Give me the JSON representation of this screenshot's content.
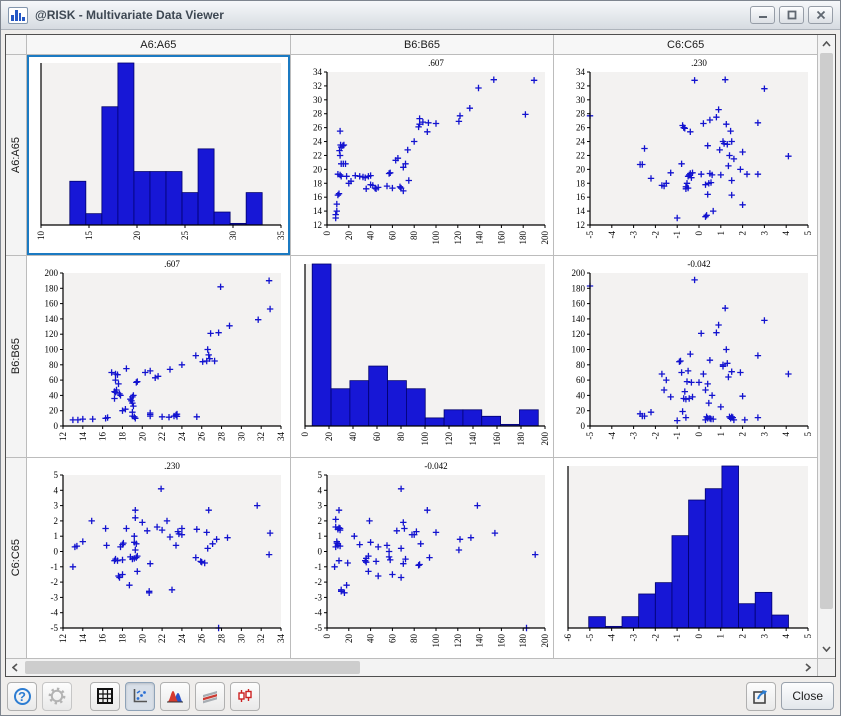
{
  "window": {
    "title": "@RISK - Multivariate Data Viewer",
    "controls": [
      "minimize",
      "maximize",
      "close"
    ]
  },
  "matrix": {
    "columns": [
      "A6:A65",
      "B6:B65",
      "C6:C65"
    ],
    "rows": [
      "A6:A65",
      "B6:B65",
      "C6:C65"
    ],
    "selected_cell": "A6:A65 x A6:A65"
  },
  "toolbar": {
    "icons": [
      "help-icon",
      "settings-gear-icon",
      "table-view-icon",
      "scatter-matrix-view-icon",
      "distribution-overlay-view-icon",
      "pattern-view-icon",
      "box-plot-view-icon",
      "export-icon"
    ],
    "selected_view": "scatter-matrix-view",
    "close_label": "Close"
  },
  "chart_data": {
    "type": "scatter-matrix",
    "variables": [
      "A",
      "B",
      "C"
    ],
    "variable_labels": {
      "A": "A6:A65",
      "B": "B6:B65",
      "C": "C6:C65"
    },
    "correlations": {
      "AB": ".607",
      "AC": ".230",
      "BC": "-0.042"
    },
    "marker_color": "#1313cf",
    "bar_color": "#1717d6",
    "bar_edge": "#00006e",
    "plot_bg": "#f3f2f1",
    "axes": {
      "A": {
        "min": 12,
        "max": 34,
        "step": 2
      },
      "B": {
        "min": 0,
        "max": 200,
        "step": 20
      },
      "C": {
        "min": -5,
        "max": 5,
        "step": 1
      }
    },
    "histograms": {
      "A": {
        "axis": {
          "min": 10,
          "max": 35,
          "step": 5
        },
        "bin_start": 13,
        "bin_width": 1.67,
        "heights": [
          0.27,
          0.07,
          0.73,
          1.0,
          0.33,
          0.33,
          0.33,
          0.2,
          0.47,
          0.08,
          0.01,
          0.2
        ]
      },
      "B": {
        "axis": {
          "min": 0,
          "max": 200,
          "step": 20
        },
        "bin_start": 6,
        "bin_width": 15.7,
        "heights": [
          1.0,
          0.23,
          0.28,
          0.37,
          0.28,
          0.23,
          0.05,
          0.1,
          0.1,
          0.06,
          0.01,
          0.1
        ]
      },
      "C": {
        "axis": {
          "min": -6,
          "max": 5,
          "step": 1
        },
        "bin_start": -5.05,
        "bin_width": 0.763,
        "heights": [
          0.07,
          0.01,
          0.07,
          0.21,
          0.28,
          0.57,
          0.79,
          0.86,
          1.0,
          0.15,
          0.22,
          0.08
        ]
      }
    },
    "pairs": {
      "AB": [
        [
          13,
          8
        ],
        [
          13.5,
          8
        ],
        [
          14,
          9
        ],
        [
          15,
          9
        ],
        [
          16.3,
          10
        ],
        [
          16.5,
          11
        ],
        [
          19.3,
          10
        ],
        [
          19.2,
          12
        ],
        [
          19,
          13
        ],
        [
          25.5,
          12
        ],
        [
          23.5,
          12.5
        ],
        [
          22.7,
          11.5
        ],
        [
          22,
          12
        ],
        [
          23.2,
          13
        ],
        [
          23.4,
          14.5
        ],
        [
          23.5,
          15.5
        ],
        [
          20.8,
          13
        ],
        [
          20.8,
          15
        ],
        [
          20.8,
          17
        ],
        [
          19,
          18
        ],
        [
          18,
          20
        ],
        [
          18.3,
          22
        ],
        [
          19.1,
          26
        ],
        [
          19,
          30
        ],
        [
          18.9,
          33
        ],
        [
          18.8,
          35
        ],
        [
          17.2,
          36
        ],
        [
          19,
          38
        ],
        [
          19.1,
          40
        ],
        [
          17.8,
          40
        ],
        [
          17.7,
          42
        ],
        [
          17.3,
          44
        ],
        [
          17.2,
          45
        ],
        [
          17.4,
          47
        ],
        [
          17.6,
          55
        ],
        [
          19.4,
          57
        ],
        [
          19.5,
          58
        ],
        [
          17.3,
          60
        ],
        [
          21.3,
          63
        ],
        [
          21.6,
          65
        ],
        [
          17.5,
          67
        ],
        [
          17.3,
          68
        ],
        [
          16.9,
          70
        ],
        [
          20.3,
          70
        ],
        [
          20.8,
          72
        ],
        [
          22.8,
          74
        ],
        [
          18.4,
          75
        ],
        [
          24,
          80
        ],
        [
          26.1,
          84
        ],
        [
          26.5,
          85
        ],
        [
          27.3,
          85
        ],
        [
          26.8,
          88
        ],
        [
          25.4,
          92
        ],
        [
          26.7,
          93
        ],
        [
          26.6,
          100
        ],
        [
          26.9,
          121
        ],
        [
          27.7,
          122
        ],
        [
          28.8,
          131
        ],
        [
          31.7,
          139
        ],
        [
          32.9,
          153
        ],
        [
          27.9,
          182
        ],
        [
          32.8,
          190
        ]
      ],
      "AC": [
        [
          27.7,
          -5
        ],
        [
          20.7,
          -2.7
        ],
        [
          20.7,
          -2.6
        ],
        [
          23,
          -2.5
        ],
        [
          18.7,
          -2.2
        ],
        [
          17.7,
          -1.7
        ],
        [
          17.6,
          -1.6
        ],
        [
          18,
          -1.5
        ],
        [
          19.5,
          -1.3
        ],
        [
          13,
          -1
        ],
        [
          20.8,
          -0.8
        ],
        [
          26.3,
          -0.75
        ],
        [
          26,
          -0.7
        ],
        [
          25.9,
          -0.65
        ],
        [
          17.5,
          -0.6
        ],
        [
          17.2,
          -0.6
        ],
        [
          18,
          -0.55
        ],
        [
          17.3,
          -0.5
        ],
        [
          19,
          -0.5
        ],
        [
          19.2,
          -0.45
        ],
        [
          25.4,
          -0.4
        ],
        [
          19.4,
          -0.4
        ],
        [
          18.8,
          -0.35
        ],
        [
          19.5,
          -0.3
        ],
        [
          32.8,
          -0.2
        ],
        [
          19.3,
          0.1
        ],
        [
          26.6,
          0.2
        ],
        [
          17.8,
          0.3
        ],
        [
          13.2,
          0.3
        ],
        [
          13.4,
          0.35
        ],
        [
          23.4,
          0.4
        ],
        [
          16.4,
          0.4
        ],
        [
          18,
          0.45
        ],
        [
          27.1,
          0.5
        ],
        [
          19.4,
          0.5
        ],
        [
          18.1,
          0.55
        ],
        [
          19.2,
          0.6
        ],
        [
          14,
          0.65
        ],
        [
          27.5,
          0.8
        ],
        [
          28.6,
          0.9
        ],
        [
          22.8,
          0.95
        ],
        [
          19.2,
          1
        ],
        [
          24,
          1.1
        ],
        [
          23.7,
          1.15
        ],
        [
          32.9,
          1.2
        ],
        [
          26.5,
          1.25
        ],
        [
          23.6,
          1.3
        ],
        [
          20.5,
          1.35
        ],
        [
          22,
          1.4
        ],
        [
          25.5,
          1.45
        ],
        [
          24,
          1.5
        ],
        [
          18.4,
          1.5
        ],
        [
          16.3,
          1.5
        ],
        [
          21.5,
          1.6
        ],
        [
          20,
          1.9
        ],
        [
          22.5,
          2
        ],
        [
          14.9,
          2
        ],
        [
          19.3,
          2.2
        ],
        [
          26.7,
          2.7
        ],
        [
          19.3,
          2.7
        ],
        [
          31.6,
          3
        ],
        [
          21.9,
          4.1
        ]
      ],
      "BC": [
        [
          183,
          -5
        ],
        [
          16,
          -2.7
        ],
        [
          13,
          -2.6
        ],
        [
          13,
          -2.5
        ],
        [
          18,
          -2.2
        ],
        [
          68,
          -1.7
        ],
        [
          47,
          -1.6
        ],
        [
          60,
          -1.5
        ],
        [
          38,
          -1.3
        ],
        [
          7,
          -1
        ],
        [
          84,
          -0.9
        ],
        [
          85,
          -0.85
        ],
        [
          70,
          -0.8
        ],
        [
          19,
          -0.75
        ],
        [
          36,
          -0.7
        ],
        [
          45,
          -0.65
        ],
        [
          35,
          -0.6
        ],
        [
          11,
          -0.6
        ],
        [
          58,
          -0.55
        ],
        [
          72,
          -0.5
        ],
        [
          36,
          -0.45
        ],
        [
          94,
          -0.4
        ],
        [
          57,
          -0.35
        ],
        [
          38,
          -0.3
        ],
        [
          191,
          -0.2
        ],
        [
          57,
          0
        ],
        [
          121,
          0.1
        ],
        [
          68,
          0.2
        ],
        [
          47,
          0.3
        ],
        [
          8,
          0.3
        ],
        [
          12,
          0.35
        ],
        [
          10,
          0.4
        ],
        [
          55,
          0.4
        ],
        [
          30,
          0.45
        ],
        [
          86,
          0.5
        ],
        [
          10,
          0.5
        ],
        [
          9,
          0.55
        ],
        [
          40,
          0.6
        ],
        [
          9,
          0.65
        ],
        [
          122,
          0.8
        ],
        [
          132,
          0.9
        ],
        [
          25,
          1
        ],
        [
          78,
          1.1
        ],
        [
          80,
          1.1
        ],
        [
          154,
          1.2
        ],
        [
          100,
          1.25
        ],
        [
          82,
          1.3
        ],
        [
          64,
          1.35
        ],
        [
          12,
          1.4
        ],
        [
          10,
          1.45
        ],
        [
          12,
          1.5
        ],
        [
          71,
          1.5
        ],
        [
          11,
          1.55
        ],
        [
          8,
          1.6
        ],
        [
          70,
          1.9
        ],
        [
          39,
          2
        ],
        [
          8,
          2.1
        ],
        [
          92,
          2.7
        ],
        [
          11,
          2.7
        ],
        [
          138,
          3
        ],
        [
          68,
          4.1
        ]
      ]
    }
  }
}
